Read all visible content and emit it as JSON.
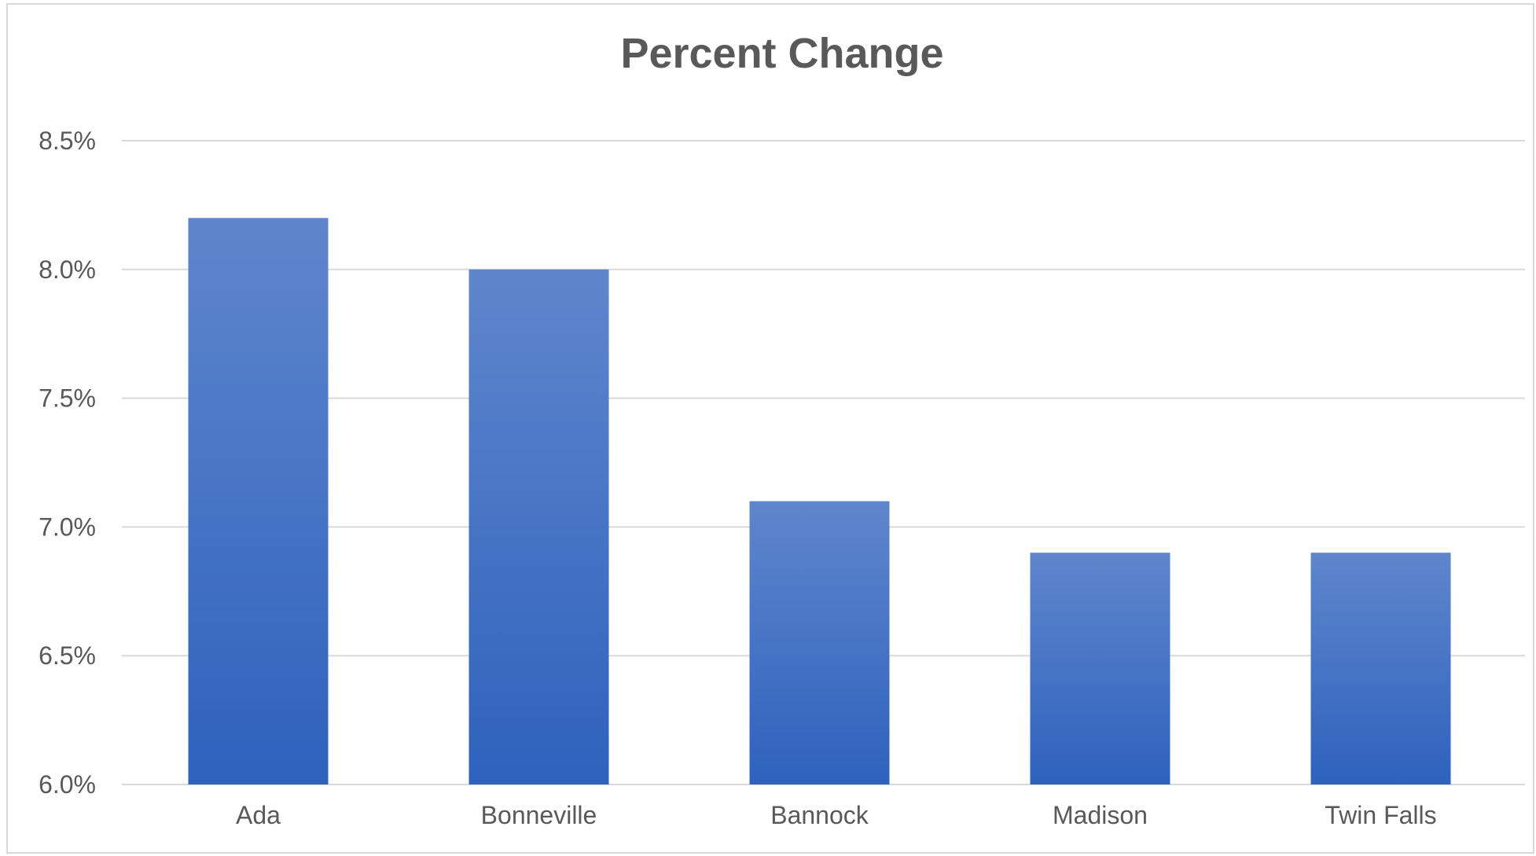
{
  "chart_data": {
    "type": "bar",
    "title": "Percent Change",
    "xlabel": "",
    "ylabel": "",
    "categories": [
      "Ada",
      "Bonneville",
      "Bannock",
      "Madison",
      "Twin Falls"
    ],
    "values": [
      8.2,
      8.0,
      7.1,
      6.9,
      6.9
    ],
    "ylim": [
      6.0,
      8.5
    ],
    "yticks": [
      "6.0%",
      "6.5%",
      "7.0%",
      "7.5%",
      "8.0%",
      "8.5%"
    ],
    "ytick_values": [
      6.0,
      6.5,
      7.0,
      7.5,
      8.0,
      8.5
    ],
    "grid": true,
    "legend": "none",
    "colors": {
      "bar_top": "#5f86cc",
      "bar_bottom": "#2e62bd",
      "gridline": "#d9d9d9",
      "text": "#595959"
    }
  }
}
